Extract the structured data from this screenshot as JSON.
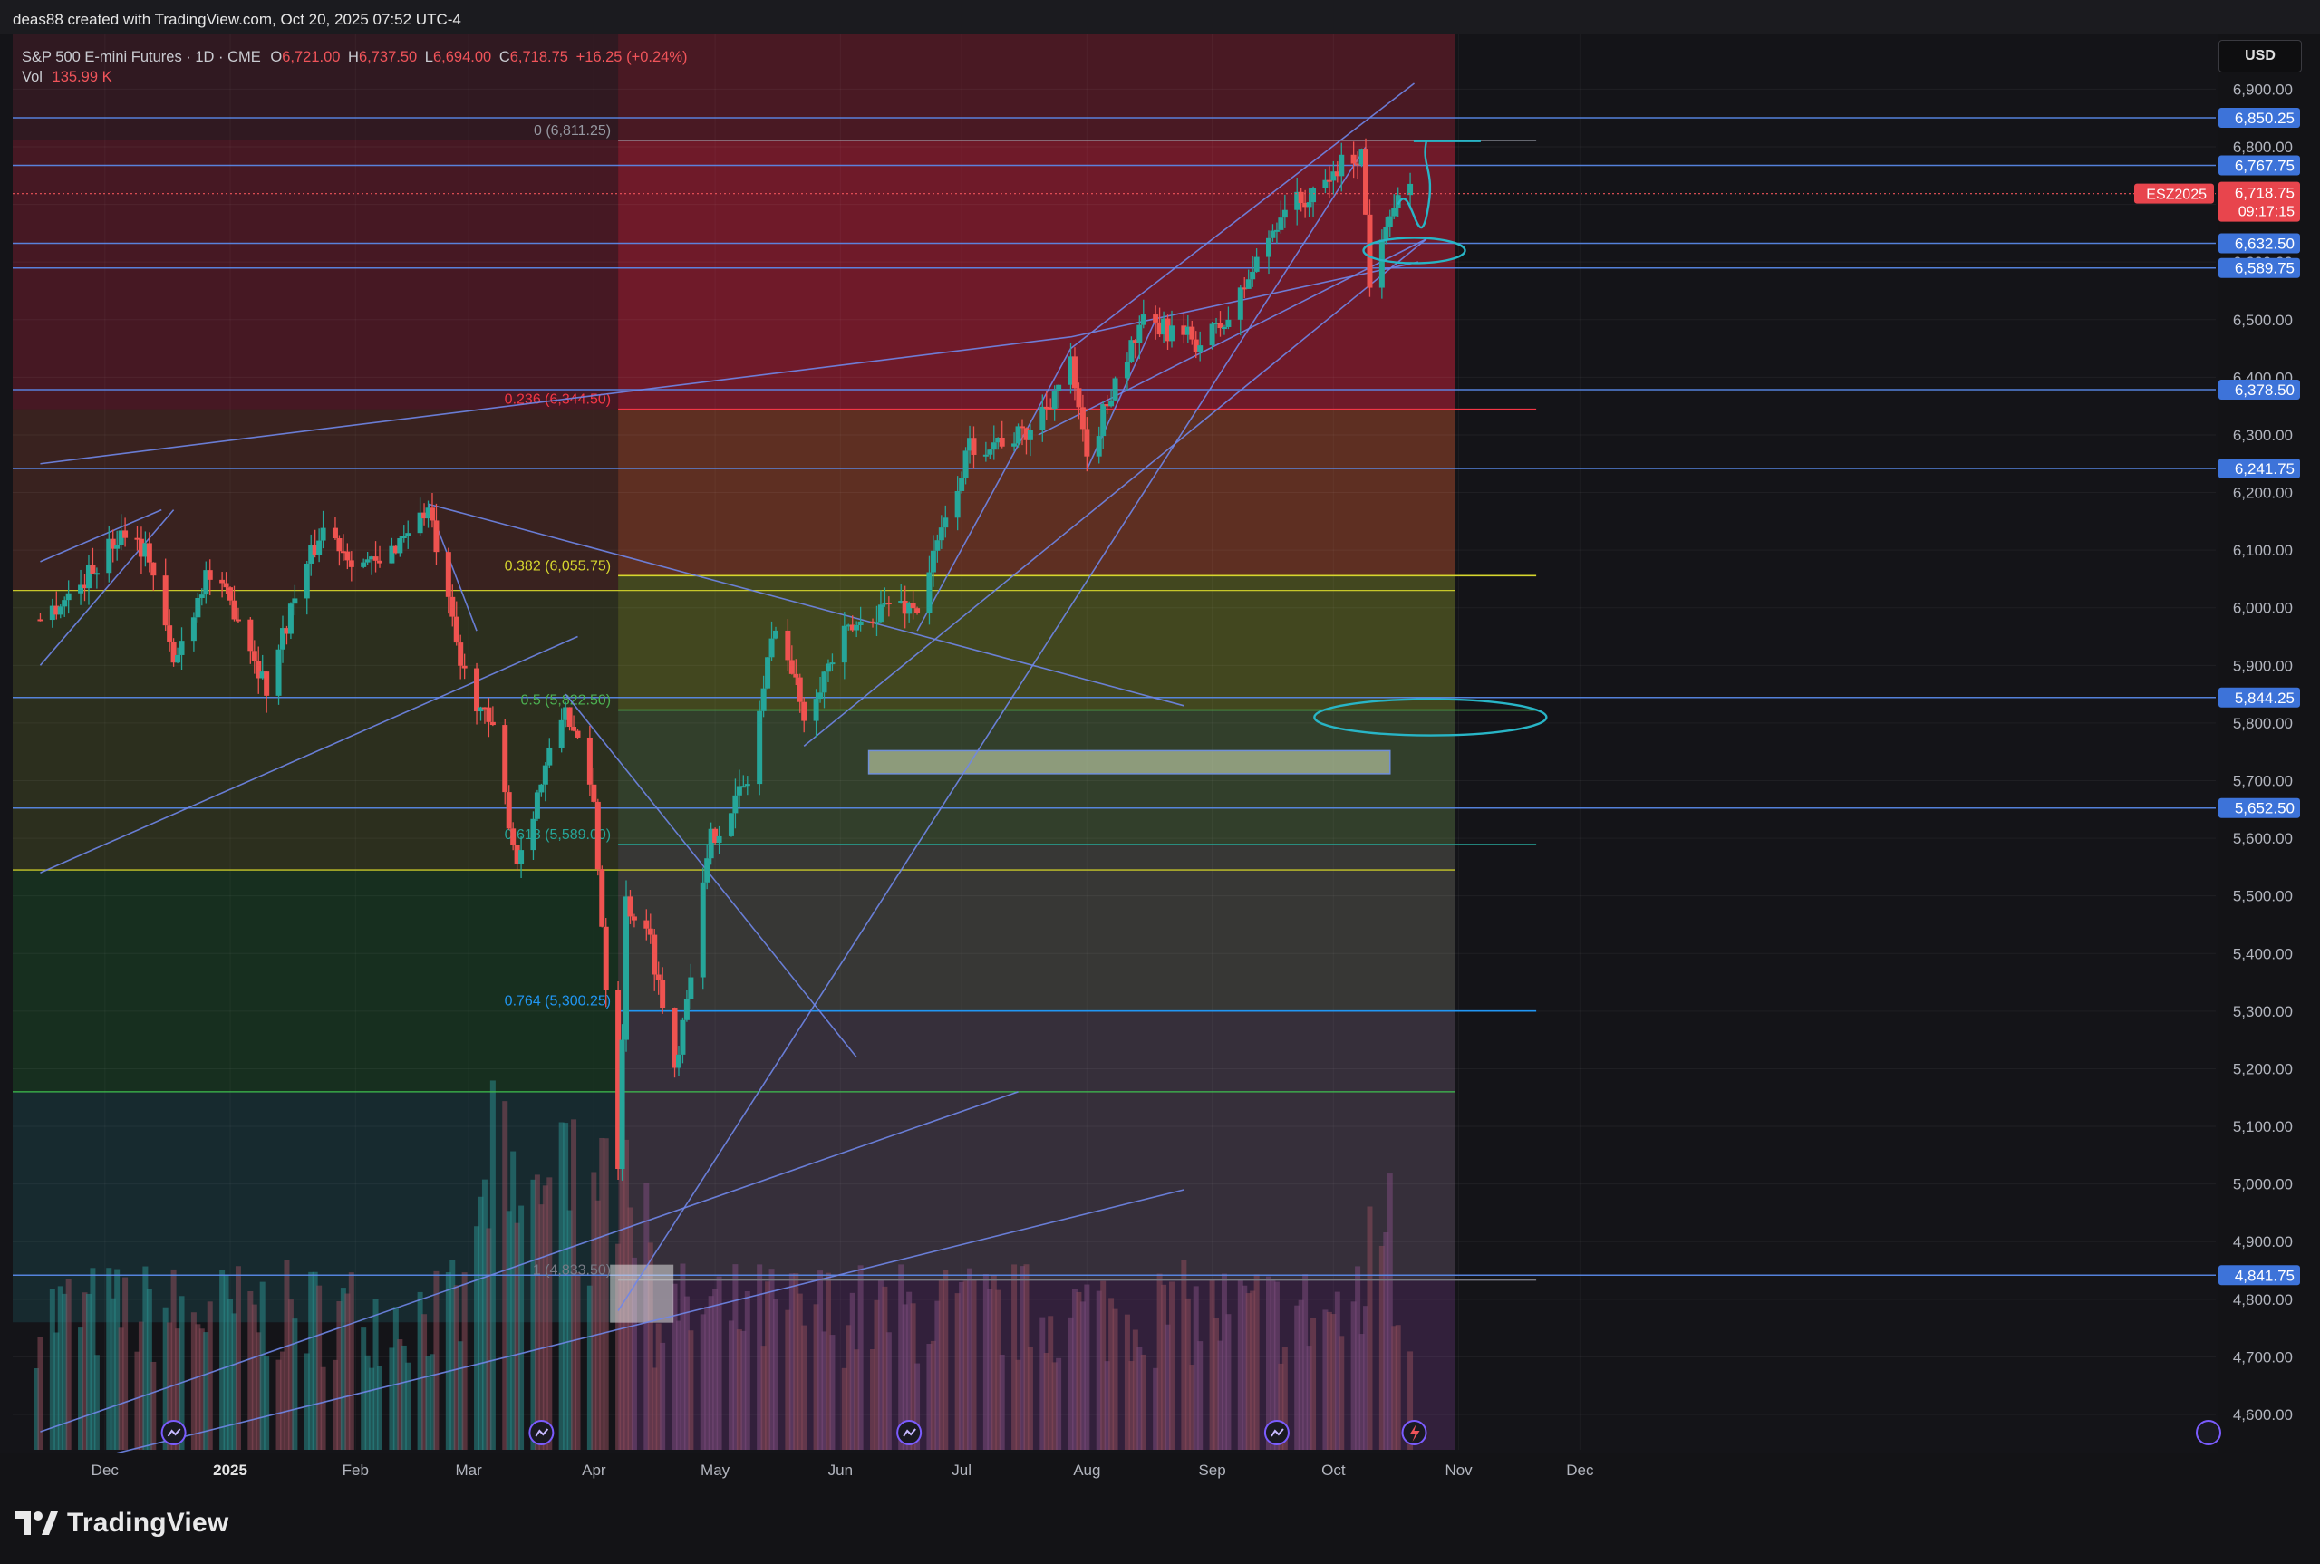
{
  "header": {
    "attribution": "deas88 created with TradingView.com, Oct 20, 2025 07:52 UTC-4"
  },
  "legend": {
    "symbol": "S&P 500 E-mini Futures · 1D · CME",
    "open_label": "O",
    "open": "6,721.00",
    "high_label": "H",
    "high": "6,737.50",
    "low_label": "L",
    "low": "6,694.00",
    "close_label": "C",
    "close": "6,718.75",
    "change": "+16.25 (+0.24%)",
    "vol_label": "Vol",
    "vol": "135.99 K"
  },
  "currency_button": "USD",
  "footer": {
    "brand": "TradingView"
  },
  "colors": {
    "background": "#141418",
    "up": "#26a69a",
    "down": "#ef5350",
    "level_line": "#5b8def",
    "label_bg": "#3d73d9",
    "annotation": "#28b5c6"
  },
  "chart_data": {
    "type": "candlestick",
    "symbol": "ESZ2025",
    "timeframe": "1D",
    "ylim": [
      4550,
      6950
    ],
    "y_ticks": [
      "6,900.00",
      "6,800.00",
      "6,700.00",
      "6,600.00",
      "6,500.00",
      "6,400.00",
      "6,300.00",
      "6,200.00",
      "6,100.00",
      "6,000.00",
      "5,900.00",
      "5,800.00",
      "5,700.00",
      "5,600.00",
      "5,500.00",
      "5,400.00",
      "5,300.00",
      "5,200.00",
      "5,100.00",
      "5,000.00",
      "4,900.00",
      "4,800.00",
      "4,700.00",
      "4,600.00"
    ],
    "x_ticks": [
      {
        "label": "Dec",
        "date": "2024-12-01"
      },
      {
        "label": "2025",
        "date": "2025-01-01"
      },
      {
        "label": "Feb",
        "date": "2025-02-01"
      },
      {
        "label": "Mar",
        "date": "2025-03-01"
      },
      {
        "label": "Apr",
        "date": "2025-04-01"
      },
      {
        "label": "May",
        "date": "2025-05-01"
      },
      {
        "label": "Jun",
        "date": "2025-06-01"
      },
      {
        "label": "Jul",
        "date": "2025-07-01"
      },
      {
        "label": "Aug",
        "date": "2025-08-01"
      },
      {
        "label": "Sep",
        "date": "2025-09-01"
      },
      {
        "label": "Oct",
        "date": "2025-10-01"
      },
      {
        "label": "Nov",
        "date": "2025-11-01"
      },
      {
        "label": "Dec",
        "date": "2025-12-01"
      }
    ],
    "last_price": {
      "label": "ESZ2025",
      "price": 6718.75,
      "text": "6,718.75",
      "countdown": "09:17:15"
    },
    "horizontal_levels": [
      {
        "price": 6850.25,
        "text": "6,850.25"
      },
      {
        "price": 6767.75,
        "text": "6,767.75"
      },
      {
        "price": 6632.5,
        "text": "6,632.50"
      },
      {
        "price": 6589.75,
        "text": "6,589.75"
      },
      {
        "price": 6378.5,
        "text": "6,378.50"
      },
      {
        "price": 6241.75,
        "text": "6,241.75"
      },
      {
        "price": 5844.25,
        "text": "5,844.25"
      },
      {
        "price": 5652.5,
        "text": "5,652.50"
      },
      {
        "price": 4841.75,
        "text": "4,841.75"
      }
    ],
    "fibonacci": {
      "start_date": "2025-04-07",
      "end_date": "2025-10-31",
      "levels": [
        {
          "ratio": "0",
          "price": 6811.25,
          "text": "0 (6,811.25)",
          "color": "#9598a1"
        },
        {
          "ratio": "0.236",
          "price": 6344.5,
          "text": "0.236 (6,344.50)",
          "color": "#f23645"
        },
        {
          "ratio": "0.382",
          "price": 6055.75,
          "text": "0.382 (6,055.75)",
          "color": "#d6d62e"
        },
        {
          "ratio": "0.5",
          "price": 5822.5,
          "text": "0.5 (5,822.50)",
          "color": "#4caf50"
        },
        {
          "ratio": "0.618",
          "price": 5589.0,
          "text": "0.618 (5,589.00)",
          "color": "#26a69a"
        },
        {
          "ratio": "0.764",
          "price": 5300.25,
          "text": "0.764 (5,300.25)",
          "color": "#2196f3"
        },
        {
          "ratio": "1",
          "price": 4833.5,
          "text": "1 (4,833.50)",
          "color": "#787b86"
        }
      ]
    },
    "historical_zones": [
      {
        "from": 6811.25,
        "to": 6344.5,
        "color": "#b2223a"
      },
      {
        "from": 6344.5,
        "to": 6030,
        "color": "#8a4030"
      },
      {
        "from": 6030,
        "to": 5545,
        "color": "#5f6a2a"
      },
      {
        "from": 5545,
        "to": 5160,
        "color": "#1f6b30"
      },
      {
        "from": 5160,
        "to": 4760,
        "color": "#1f5a60"
      }
    ],
    "demand_box": {
      "from_date": "2025-06-08",
      "to_date": "2025-10-15",
      "top": 5752,
      "bottom": 5712
    },
    "price_path": [
      {
        "date": "2024-11-15",
        "close": 5980
      },
      {
        "date": "2024-11-25",
        "close": 6040
      },
      {
        "date": "2024-12-06",
        "close": 6140
      },
      {
        "date": "2024-12-12",
        "close": 6090
      },
      {
        "date": "2024-12-18",
        "close": 5900
      },
      {
        "date": "2024-12-26",
        "close": 6060
      },
      {
        "date": "2025-01-03",
        "close": 5990
      },
      {
        "date": "2025-01-10",
        "close": 5860
      },
      {
        "date": "2025-01-17",
        "close": 6020
      },
      {
        "date": "2025-01-24",
        "close": 6140
      },
      {
        "date": "2025-01-31",
        "close": 6090
      },
      {
        "date": "2025-02-07",
        "close": 6070
      },
      {
        "date": "2025-02-14",
        "close": 6140
      },
      {
        "date": "2025-02-19",
        "close": 6170
      },
      {
        "date": "2025-02-27",
        "close": 5900
      },
      {
        "date": "2025-03-07",
        "close": 5780
      },
      {
        "date": "2025-03-13",
        "close": 5560
      },
      {
        "date": "2025-03-20",
        "close": 5720
      },
      {
        "date": "2025-03-25",
        "close": 5830
      },
      {
        "date": "2025-04-01",
        "close": 5660
      },
      {
        "date": "2025-04-07",
        "close": 5040
      },
      {
        "date": "2025-04-09",
        "close": 5490
      },
      {
        "date": "2025-04-15",
        "close": 5420
      },
      {
        "date": "2025-04-21",
        "close": 5200
      },
      {
        "date": "2025-04-30",
        "close": 5600
      },
      {
        "date": "2025-05-09",
        "close": 5700
      },
      {
        "date": "2025-05-16",
        "close": 5980
      },
      {
        "date": "2025-05-23",
        "close": 5820
      },
      {
        "date": "2025-06-02",
        "close": 5950
      },
      {
        "date": "2025-06-13",
        "close": 6010
      },
      {
        "date": "2025-06-20",
        "close": 6000
      },
      {
        "date": "2025-07-03",
        "close": 6280
      },
      {
        "date": "2025-07-17",
        "close": 6300
      },
      {
        "date": "2025-07-28",
        "close": 6420
      },
      {
        "date": "2025-08-01",
        "close": 6250
      },
      {
        "date": "2025-08-08",
        "close": 6400
      },
      {
        "date": "2025-08-15",
        "close": 6490
      },
      {
        "date": "2025-08-22",
        "close": 6480
      },
      {
        "date": "2025-08-29",
        "close": 6460
      },
      {
        "date": "2025-09-05",
        "close": 6500
      },
      {
        "date": "2025-09-12",
        "close": 6600
      },
      {
        "date": "2025-09-19",
        "close": 6700
      },
      {
        "date": "2025-09-26",
        "close": 6710
      },
      {
        "date": "2025-10-03",
        "close": 6770
      },
      {
        "date": "2025-10-08",
        "close": 6790
      },
      {
        "date": "2025-10-10",
        "close": 6570
      },
      {
        "date": "2025-10-14",
        "close": 6680
      },
      {
        "date": "2025-10-17",
        "close": 6700
      },
      {
        "date": "2025-10-20",
        "close": 6718.75
      }
    ],
    "trendlines": [
      {
        "from": {
          "date": "2024-11-15",
          "price": 5540
        },
        "to": {
          "date": "2025-03-28",
          "price": 5950
        }
      },
      {
        "from": {
          "date": "2024-11-15",
          "price": 5900
        },
        "to": {
          "date": "2024-12-18",
          "price": 6170
        }
      },
      {
        "from": {
          "date": "2024-11-15",
          "price": 6080
        },
        "to": {
          "date": "2024-12-15",
          "price": 6170
        }
      },
      {
        "from": {
          "date": "2025-02-19",
          "price": 6180
        },
        "to": {
          "date": "2025-08-25",
          "price": 5830
        }
      },
      {
        "from": {
          "date": "2025-02-19",
          "price": 6180
        },
        "to": {
          "date": "2025-03-03",
          "price": 5960
        }
      },
      {
        "from": {
          "date": "2025-03-25",
          "price": 5850
        },
        "to": {
          "date": "2025-06-05",
          "price": 5220
        }
      },
      {
        "from": {
          "date": "2024-11-15",
          "price": 6250
        },
        "to": {
          "date": "2025-07-28",
          "price": 6470
        }
      },
      {
        "from": {
          "date": "2025-07-28",
          "price": 6470
        },
        "to": {
          "date": "2025-10-22",
          "price": 6600
        }
      },
      {
        "from": {
          "date": "2025-07-28",
          "price": 6450
        },
        "to": {
          "date": "2025-10-21",
          "price": 6910
        }
      },
      {
        "from": {
          "date": "2025-06-20",
          "price": 5960
        },
        "to": {
          "date": "2025-07-28",
          "price": 6450
        }
      },
      {
        "from": {
          "date": "2025-05-23",
          "price": 5760
        },
        "to": {
          "date": "2025-10-24",
          "price": 6640
        }
      },
      {
        "from": {
          "date": "2025-08-01",
          "price": 6240
        },
        "to": {
          "date": "2025-08-18",
          "price": 6500
        }
      },
      {
        "from": {
          "date": "2025-04-07",
          "price": 4780
        },
        "to": {
          "date": "2025-10-09",
          "price": 6800
        }
      },
      {
        "from": {
          "date": "2025-07-20",
          "price": 6300
        },
        "to": {
          "date": "2025-10-24",
          "price": 6640
        }
      },
      {
        "from": {
          "date": "2024-11-15",
          "price": 4570
        },
        "to": {
          "date": "2025-07-15",
          "price": 5160
        }
      },
      {
        "from": {
          "date": "2024-11-15",
          "price": 4500
        },
        "to": {
          "date": "2025-08-25",
          "price": 4990
        }
      }
    ],
    "annotations": [
      {
        "type": "ellipse",
        "date": "2025-10-21",
        "price": 6620,
        "color": "#28b5c6"
      },
      {
        "type": "ellipse",
        "date": "2025-10-25",
        "price": 5810,
        "color": "#28b5c6"
      },
      {
        "type": "freehand-arrow",
        "from": {
          "date": "2025-10-17",
          "price": 6700
        },
        "to": {
          "date": "2025-10-24",
          "price": 6810
        },
        "color": "#28b5c6"
      }
    ],
    "grid": true,
    "volume_pane": true
  }
}
